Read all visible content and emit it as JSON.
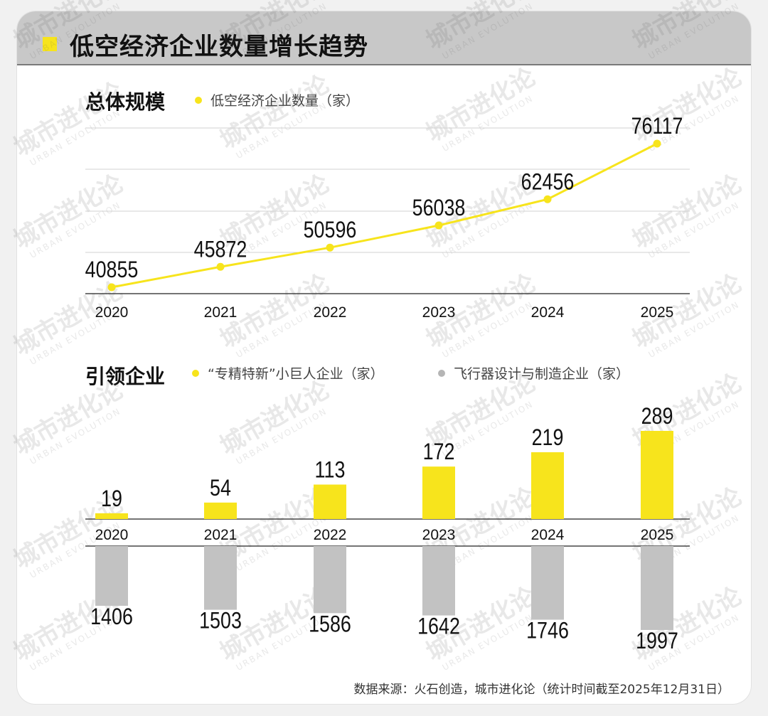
{
  "header": {
    "title": "低空经济企业数量增长趋势"
  },
  "section1": {
    "title": "总体规模",
    "legend": "低空经济企业数量（家）"
  },
  "section2": {
    "title": "引领企业",
    "legend_a": "“专精特新”小巨人企业（家）",
    "legend_b": "飞行器设计与制造企业（家）"
  },
  "source": "数据来源：火石创造，城市进化论（统计时间截至2025年12月31日）",
  "colors": {
    "yellow": "#f7e41c",
    "gray": "#c2c2c2",
    "header_bg": "#c8c8c8"
  },
  "watermark": {
    "cn": "城市进化论",
    "en": "URBAN EVOLUTION"
  },
  "chart_data": [
    {
      "type": "line",
      "x": [
        "2020",
        "2021",
        "2022",
        "2023",
        "2024",
        "2025"
      ],
      "series": [
        {
          "name": "低空经济企业数量（家）",
          "values": [
            40855,
            45872,
            50596,
            56038,
            62456,
            76117
          ]
        }
      ],
      "grid": true
    },
    {
      "type": "bar",
      "categories": [
        "2020",
        "2021",
        "2022",
        "2023",
        "2024",
        "2025"
      ],
      "series": [
        {
          "name": "“专精特新”小巨人企业（家）",
          "values": [
            19,
            54,
            113,
            172,
            219,
            289
          ]
        },
        {
          "name": "飞行器设计与制造企业（家）",
          "values": [
            1406,
            1503,
            1586,
            1642,
            1746,
            1997
          ]
        }
      ]
    }
  ]
}
